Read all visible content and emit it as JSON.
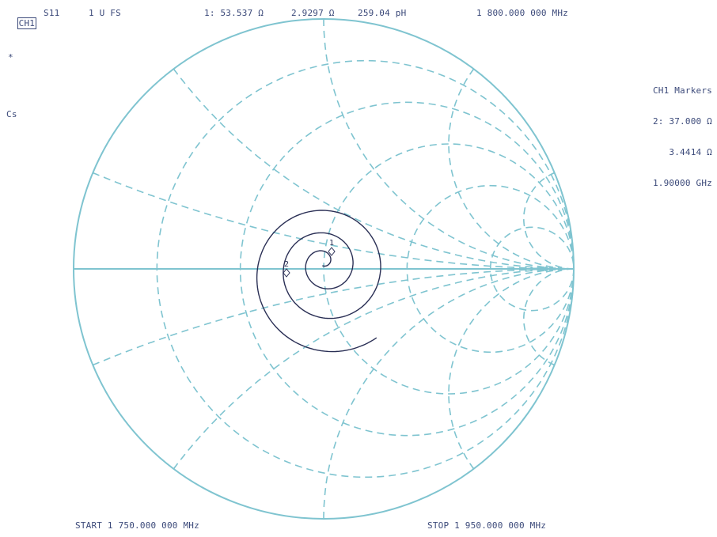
{
  "header": {
    "channel": "CH1",
    "parameter": "S11",
    "scale": "1 U FS",
    "marker_readout": "1: 53.537 Ω",
    "reactance": "2.9297 Ω",
    "inductance": "259.04 pH",
    "frequency": "1 800.000 000 MHz"
  },
  "left_annotations": {
    "star": "*",
    "cal": "Cs"
  },
  "markers_panel": {
    "title": "CH1 Markers",
    "m2_resistance": "2: 37.000 Ω",
    "m2_reactance": "3.4414 Ω",
    "m2_frequency": "1.90000 GHz"
  },
  "footer": {
    "start": "START 1 750.000 000 MHz",
    "stop": "STOP 1 950.000 000 MHz"
  },
  "colors": {
    "grid": "#7fc4d0",
    "trace": "#2a2f55",
    "text": "#3c4a7a",
    "background": "#ffffff"
  },
  "markers": [
    {
      "label": "1",
      "r": 53.537,
      "x": 2.9297
    },
    {
      "label": "2",
      "r": 37.0,
      "x": 3.4414
    }
  ],
  "chart_data": {
    "type": "smith",
    "title": "",
    "z0": 50,
    "start_freq": "1 750.000 000 MHz",
    "stop_freq": "1 950.000 000 MHz",
    "resistance_circles": [
      0.2,
      0.5,
      1,
      2,
      5
    ],
    "reactance_arcs": [
      0.2,
      0.5,
      1,
      2,
      5,
      -0.2,
      -0.5,
      -1,
      -2,
      -5
    ]
  }
}
